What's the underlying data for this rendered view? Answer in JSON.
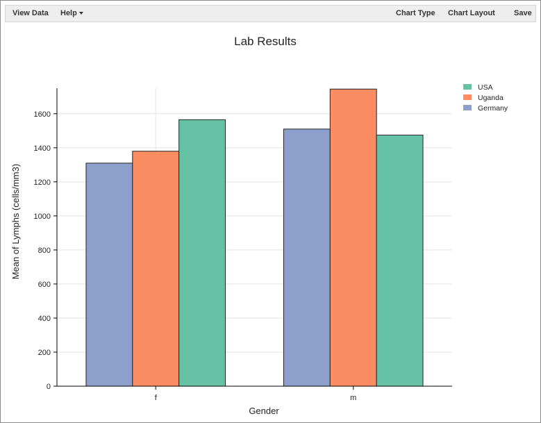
{
  "toolbar": {
    "view_data": "View Data",
    "help": "Help",
    "chart_type": "Chart Type",
    "chart_layout": "Chart Layout",
    "save": "Save"
  },
  "chart_data": {
    "type": "bar",
    "title": "Lab Results",
    "xlabel": "Gender",
    "ylabel": "Mean of Lymphs (cells/mm3)",
    "categories": [
      "f",
      "m"
    ],
    "ylim": [
      0,
      1750
    ],
    "yticks": [
      0,
      200,
      400,
      600,
      800,
      1000,
      1200,
      1400,
      1600
    ],
    "grid": true,
    "legend_position": "top-right",
    "series": [
      {
        "name": "Germany",
        "color": "#8da0cb",
        "values": [
          1310,
          1510
        ]
      },
      {
        "name": "Uganda",
        "color": "#fc8d62",
        "values": [
          1380,
          1745
        ]
      },
      {
        "name": "USA",
        "color": "#66c2a5",
        "values": [
          1565,
          1475
        ]
      }
    ],
    "legend_order": [
      "USA",
      "Uganda",
      "Germany"
    ]
  }
}
